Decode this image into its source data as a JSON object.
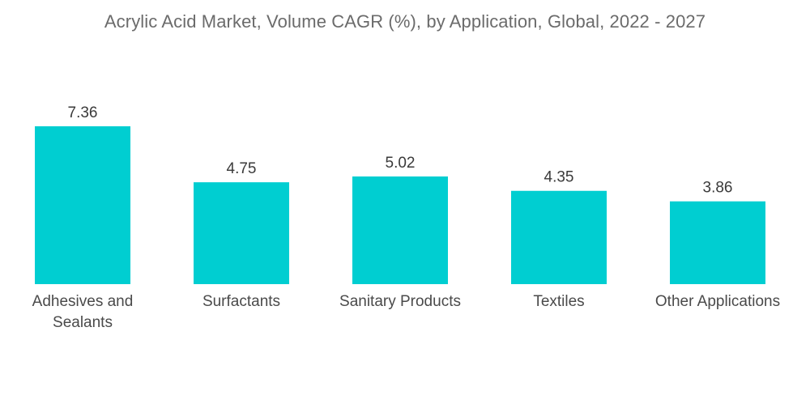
{
  "chart_data": {
    "type": "bar",
    "title": "Acrylic Acid Market, Volume CAGR (%), by Application, Global, 2022 - 2027",
    "categories": [
      [
        "Adhesives and",
        "Sealants"
      ],
      [
        "Surfactants"
      ],
      [
        "Sanitary Products"
      ],
      [
        "Textiles"
      ],
      [
        "Other Applications"
      ]
    ],
    "values": [
      7.36,
      4.75,
      5.02,
      4.35,
      3.86
    ],
    "value_labels": [
      "7.36",
      "4.75",
      "5.02",
      "4.35",
      "3.86"
    ],
    "xlabel": "",
    "ylabel": "",
    "ylim": [
      0,
      7.36
    ],
    "grid": false,
    "bar_color": "#00ced1"
  }
}
